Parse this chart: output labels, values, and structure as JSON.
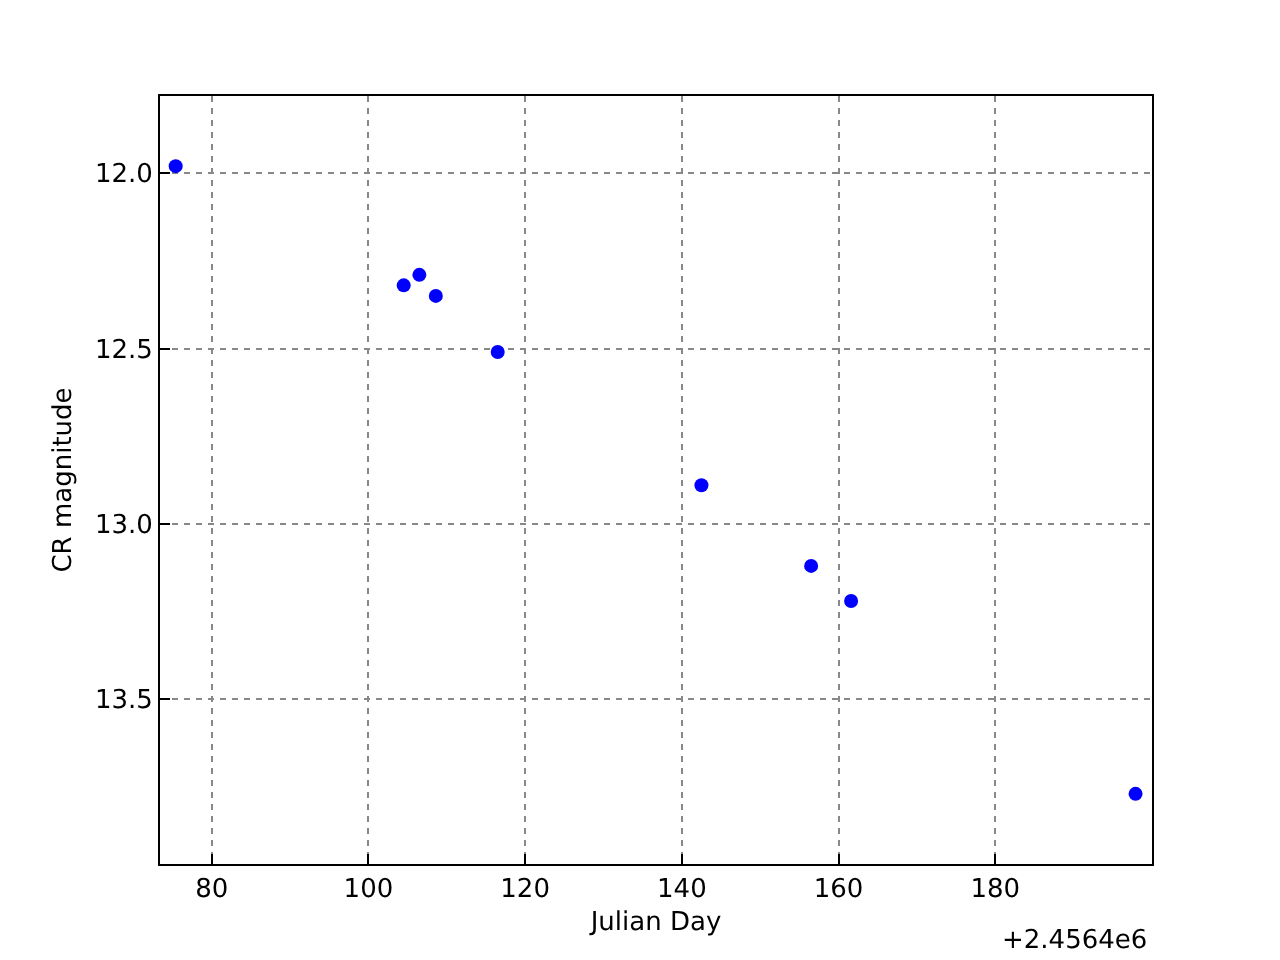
{
  "chart_data": {
    "type": "scatter",
    "xlabel": "Julian Day",
    "ylabel": "CR magnitude",
    "annotations": [
      "+2.4564e6"
    ],
    "x": [
      75.4,
      104.5,
      106.5,
      108.6,
      116.5,
      142.5,
      156.5,
      161.6,
      197.9
    ],
    "series": [
      {
        "color": "#0000ff",
        "values": [
          11.98,
          12.32,
          12.29,
          12.35,
          12.51,
          12.89,
          13.12,
          13.22,
          13.77
        ]
      }
    ],
    "xlim": [
      73.4,
      200.0
    ],
    "xticks": [
      80,
      100,
      120,
      140,
      160,
      180
    ],
    "ylim": [
      13.97,
      11.78
    ],
    "yticks": [
      {
        "value": 12.0,
        "label": "12.0"
      },
      {
        "value": 12.5,
        "label": "12.5"
      },
      {
        "value": 13.0,
        "label": "13.0"
      },
      {
        "value": 13.5,
        "label": "13.5"
      }
    ],
    "grid": true,
    "marker": "circle",
    "legend": false
  }
}
